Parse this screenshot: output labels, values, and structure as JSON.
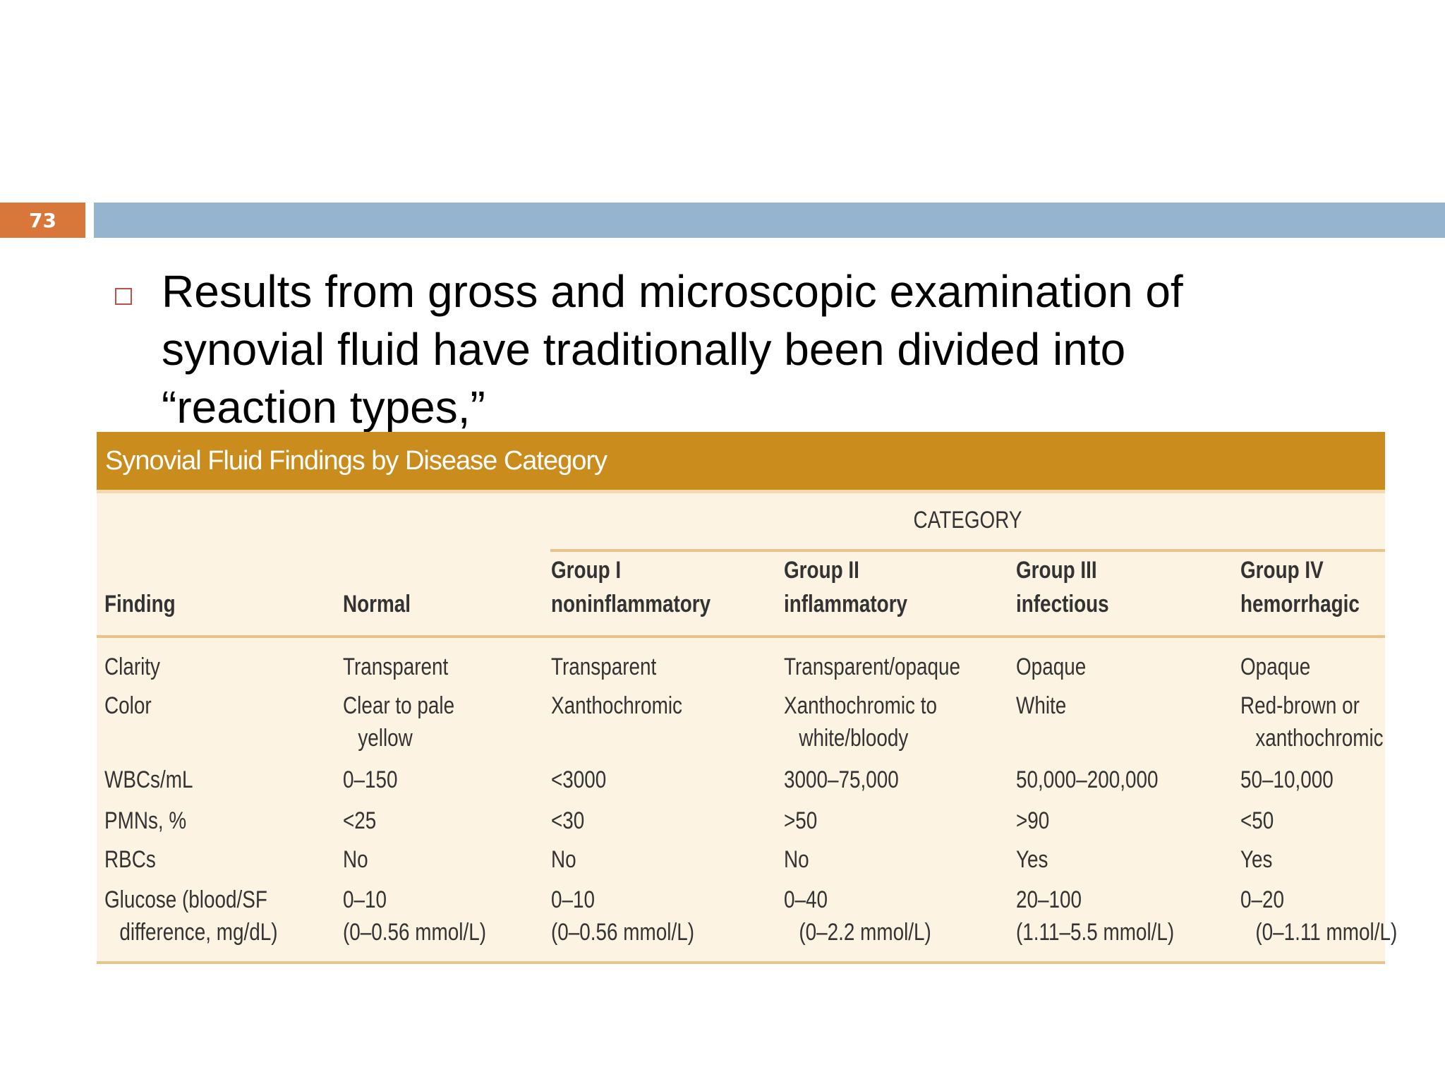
{
  "slide": {
    "number": "73",
    "bullet": "Results from gross and microscopic examination of synovial fluid have traditionally been divided into “reaction types,”"
  },
  "table": {
    "caption": "Synovial Fluid Findings by Disease Category",
    "category_label": "CATEGORY",
    "headers": {
      "finding": "Finding",
      "normal": "Normal",
      "g1": [
        "Group I",
        "noninflammatory"
      ],
      "g2": [
        "Group II",
        "inflammatory"
      ],
      "g3": [
        "Group III",
        "infectious"
      ],
      "g4": [
        "Group IV",
        "hemorrhagic"
      ]
    },
    "rows": [
      {
        "finding": [
          "Clarity"
        ],
        "normal": [
          "Transparent"
        ],
        "g1": [
          "Transparent"
        ],
        "g2": [
          "Transparent/opaque"
        ],
        "g3": [
          "Opaque"
        ],
        "g4": [
          "Opaque"
        ]
      },
      {
        "finding": [
          "Color"
        ],
        "normal": [
          "Clear to pale",
          "yellow"
        ],
        "g1": [
          "Xanthochromic"
        ],
        "g2": [
          "Xanthochromic to",
          "white/bloody"
        ],
        "g3": [
          "White"
        ],
        "g4": [
          "Red-brown or",
          "xanthochromic"
        ]
      },
      {
        "finding": [
          "WBCs/mL"
        ],
        "normal": [
          "0–150"
        ],
        "g1": [
          "<3000"
        ],
        "g2": [
          "3000–75,000"
        ],
        "g3": [
          "50,000–200,000"
        ],
        "g4": [
          "50–10,000"
        ]
      },
      {
        "finding": [
          "PMNs, %"
        ],
        "normal": [
          "<25"
        ],
        "g1": [
          "<30"
        ],
        "g2": [
          ">50"
        ],
        "g3": [
          ">90"
        ],
        "g4": [
          "<50"
        ]
      },
      {
        "finding": [
          "RBCs"
        ],
        "normal": [
          "No"
        ],
        "g1": [
          "No"
        ],
        "g2": [
          "No"
        ],
        "g3": [
          "Yes"
        ],
        "g4": [
          "Yes"
        ]
      },
      {
        "finding": [
          "Glucose (blood/SF",
          "difference, mg/dL)"
        ],
        "normal": [
          "0–10",
          "(0–0.56 mmol/L)"
        ],
        "g1": [
          "0–10",
          "(0–0.56 mmol/L)"
        ],
        "g2": [
          "0–40",
          "(0–2.2 mmol/L)"
        ],
        "g3": [
          "20–100",
          "(1.11–5.5 mmol/L)"
        ],
        "g4": [
          "0–20",
          "(0–1.11 mmol/L)"
        ]
      }
    ]
  }
}
